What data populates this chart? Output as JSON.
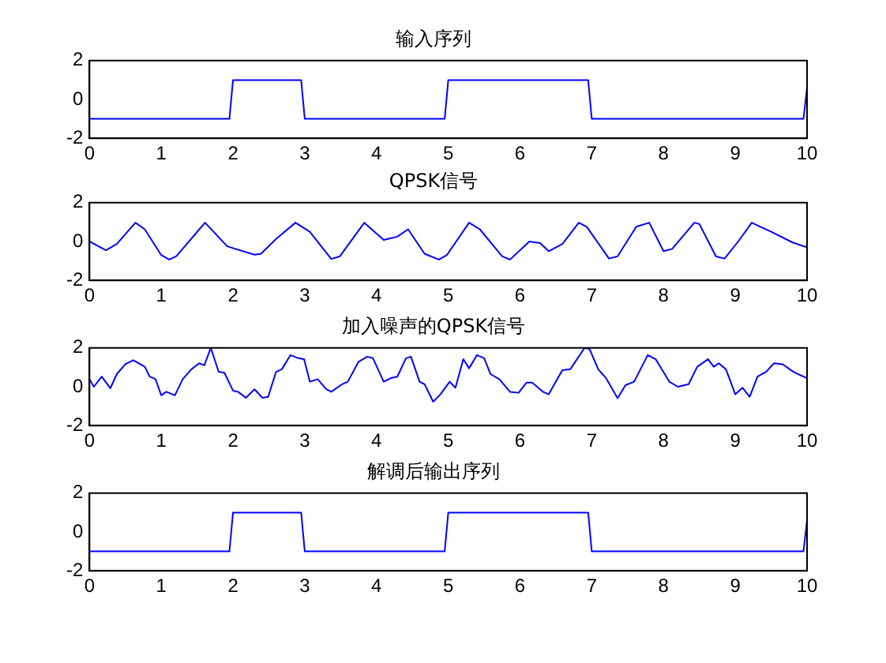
{
  "chart_data": [
    {
      "type": "line",
      "title": "输入序列",
      "x": [
        0,
        1.95,
        2,
        2.95,
        3,
        4.95,
        5,
        6.95,
        7,
        9.95,
        10
      ],
      "values": [
        -1,
        -1,
        1,
        1,
        -1,
        -1,
        1,
        1,
        -1,
        -1,
        0.6
      ],
      "color": "#0000ff",
      "xlim": [
        0,
        10
      ],
      "xticks": [
        0,
        1,
        2,
        3,
        4,
        5,
        6,
        7,
        8,
        9,
        10
      ],
      "ylim": [
        -2,
        2
      ],
      "yticks": [
        -2,
        0,
        2
      ],
      "grid": false,
      "legend": false,
      "marker": "none"
    },
    {
      "type": "line",
      "title": "QPSK信号",
      "x": [
        0,
        0.23,
        0.38,
        0.64,
        0.77,
        1.0,
        1.11,
        1.21,
        1.61,
        1.92,
        2.3,
        2.39,
        2.6,
        2.87,
        3.07,
        3.37,
        3.49,
        3.83,
        4.1,
        4.29,
        4.44,
        4.67,
        4.87,
        4.98,
        5.29,
        5.44,
        5.75,
        5.86,
        6.13,
        6.28,
        6.4,
        6.59,
        6.82,
        6.93,
        7.24,
        7.36,
        7.62,
        7.8,
        8.0,
        8.12,
        8.43,
        8.5,
        8.73,
        8.85,
        9.04,
        9.23,
        9.35,
        9.5,
        9.8,
        10
      ],
      "values": [
        0,
        -0.45,
        -0.13,
        0.97,
        0.63,
        -0.7,
        -0.93,
        -0.76,
        0.97,
        -0.25,
        -0.68,
        -0.63,
        0.13,
        0.97,
        0.5,
        -0.9,
        -0.76,
        0.97,
        0.08,
        0.25,
        0.63,
        -0.63,
        -0.93,
        -0.7,
        0.97,
        0.63,
        -0.76,
        -0.93,
        0,
        -0.08,
        -0.5,
        -0.13,
        0.97,
        0.76,
        -0.88,
        -0.76,
        0.76,
        0.97,
        -0.5,
        -0.38,
        0.97,
        0.9,
        -0.76,
        -0.88,
        0,
        0.97,
        0.76,
        0.5,
        -0.05,
        -0.3
      ],
      "color": "#0000ff",
      "xlim": [
        0,
        10
      ],
      "xticks": [
        0,
        1,
        2,
        3,
        4,
        5,
        6,
        7,
        8,
        9,
        10
      ],
      "ylim": [
        -2,
        2
      ],
      "yticks": [
        -2,
        0,
        2
      ],
      "grid": false,
      "legend": false,
      "marker": "none"
    },
    {
      "type": "line",
      "title": "加入噪声的QPSK信号",
      "x": [
        0,
        0.06,
        0.17,
        0.29,
        0.38,
        0.5,
        0.61,
        0.77,
        0.84,
        0.92,
        1.0,
        1.07,
        1.19,
        1.3,
        1.42,
        1.53,
        1.6,
        1.69,
        1.8,
        1.88,
        2.0,
        2.07,
        2.18,
        2.3,
        2.41,
        2.49,
        2.6,
        2.68,
        2.8,
        2.91,
        2.99,
        3.07,
        3.18,
        3.3,
        3.37,
        3.52,
        3.6,
        3.75,
        3.87,
        3.95,
        4.1,
        4.21,
        4.29,
        4.41,
        4.48,
        4.6,
        4.67,
        4.79,
        4.89,
        5.02,
        5.1,
        5.21,
        5.29,
        5.4,
        5.5,
        5.59,
        5.71,
        5.86,
        5.98,
        6.09,
        6.17,
        6.32,
        6.4,
        6.59,
        6.7,
        6.9,
        6.97,
        7.09,
        7.2,
        7.36,
        7.47,
        7.59,
        7.78,
        7.89,
        8.08,
        8.2,
        8.35,
        8.47,
        8.62,
        8.7,
        8.77,
        8.87,
        9.0,
        9.1,
        9.2,
        9.31,
        9.43,
        9.54,
        9.66,
        9.81,
        10
      ],
      "values": [
        0.39,
        0,
        0.52,
        -0.08,
        0.65,
        1.16,
        1.37,
        1.03,
        0.52,
        0.39,
        -0.44,
        -0.26,
        -0.44,
        0.39,
        0.9,
        1.21,
        1.1,
        2.0,
        0.77,
        0.72,
        -0.2,
        -0.26,
        -0.57,
        -0.13,
        -0.57,
        -0.52,
        0.77,
        0.9,
        1.63,
        1.47,
        1.42,
        0.26,
        0.39,
        -0.13,
        -0.26,
        0.13,
        0.26,
        1.29,
        1.55,
        1.47,
        0.26,
        0.46,
        0.52,
        1.47,
        1.55,
        0.26,
        0.13,
        -0.77,
        -0.39,
        0.26,
        -0.05,
        1.42,
        0.95,
        1.63,
        1.47,
        0.65,
        0.39,
        -0.26,
        -0.31,
        0.21,
        0.21,
        -0.26,
        -0.39,
        0.85,
        0.9,
        2.0,
        1.94,
        0.9,
        0.44,
        -0.59,
        0.08,
        0.26,
        1.63,
        1.42,
        0.26,
        0,
        0.13,
        1.03,
        1.42,
        1.03,
        1.21,
        0.9,
        -0.39,
        -0.05,
        -0.52,
        0.52,
        0.77,
        1.21,
        1.16,
        0.77,
        0.44
      ],
      "color": "#0000ff",
      "xlim": [
        0,
        10
      ],
      "xticks": [
        0,
        1,
        2,
        3,
        4,
        5,
        6,
        7,
        8,
        9,
        10
      ],
      "ylim": [
        -2,
        2
      ],
      "yticks": [
        -2,
        0,
        2
      ],
      "grid": false,
      "legend": false,
      "marker": "none"
    },
    {
      "type": "line",
      "title": "解调后输出序列",
      "x": [
        0,
        1.95,
        2,
        2.95,
        3,
        4.95,
        5,
        6.95,
        7,
        9.95,
        10
      ],
      "values": [
        -1,
        -1,
        1,
        1,
        -1,
        -1,
        1,
        1,
        -1,
        -1,
        0.6
      ],
      "color": "#0000ff",
      "xlim": [
        0,
        10
      ],
      "xticks": [
        0,
        1,
        2,
        3,
        4,
        5,
        6,
        7,
        8,
        9,
        10
      ],
      "ylim": [
        -2,
        2
      ],
      "yticks": [
        -2,
        0,
        2
      ],
      "grid": false,
      "legend": false,
      "marker": "none"
    }
  ]
}
